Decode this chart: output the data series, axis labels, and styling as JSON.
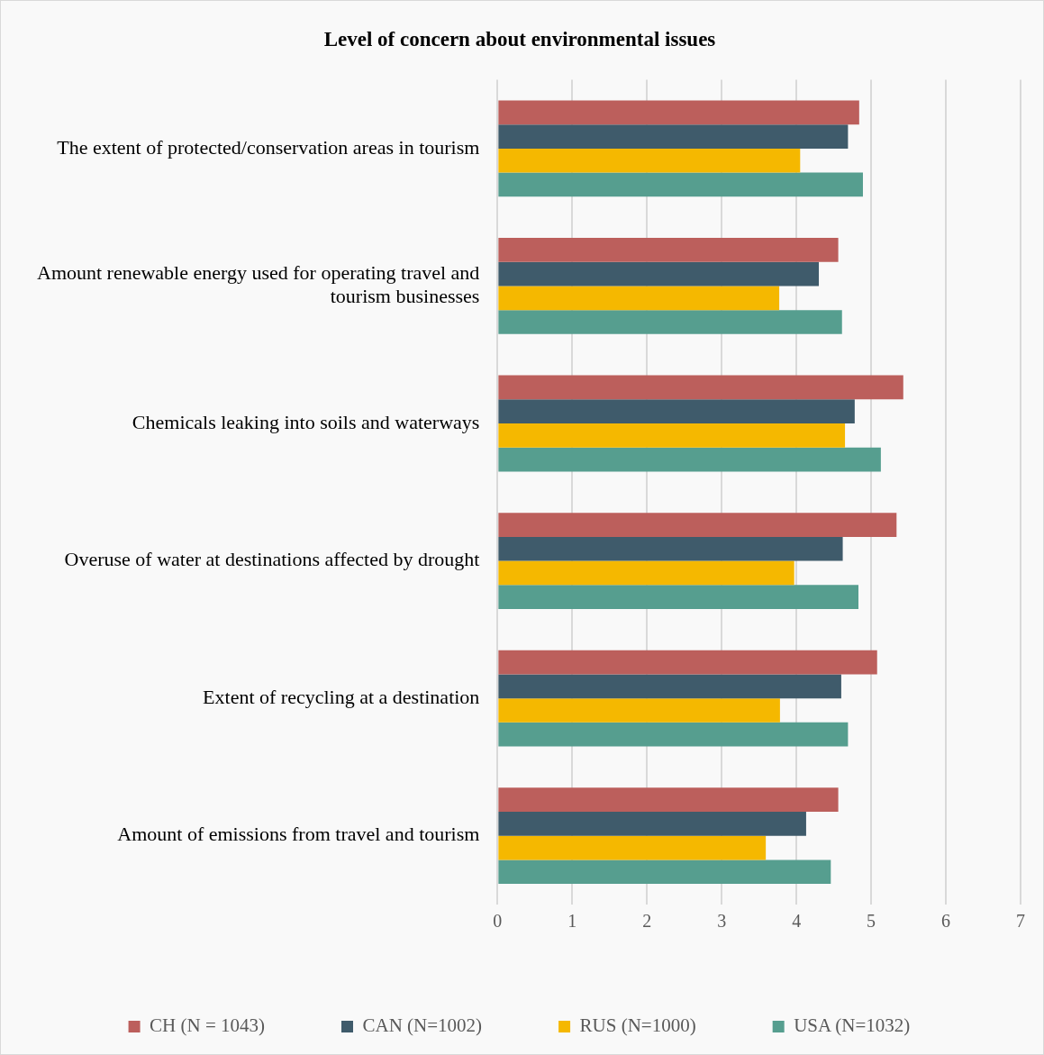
{
  "chart_data": {
    "type": "bar",
    "orientation": "horizontal",
    "title": "Level of concern about environmental issues",
    "categories": [
      "The extent of protected/conservation areas in tourism",
      "Amount renewable energy used for operating travel and tourism businesses",
      "Chemicals leaking into soils and waterways",
      "Overuse of water at destinations affected by drought",
      "Extent of recycling at a destination",
      "Amount of emissions from travel and tourism"
    ],
    "series": [
      {
        "name": "CH (N = 1043)",
        "color": "#bc5f5c",
        "values": [
          4.84,
          4.56,
          5.43,
          5.34,
          5.08,
          4.56
        ]
      },
      {
        "name": "CAN (N=1002)",
        "color": "#3f5b6b",
        "values": [
          4.69,
          4.3,
          4.78,
          4.62,
          4.6,
          4.13
        ]
      },
      {
        "name": "RUS (N=1000)",
        "color": "#f5b800",
        "values": [
          4.05,
          3.77,
          4.65,
          3.97,
          3.78,
          3.59
        ]
      },
      {
        "name": "USA (N=1032)",
        "color": "#569e8f",
        "values": [
          4.89,
          4.61,
          5.13,
          4.83,
          4.69,
          4.46
        ]
      }
    ],
    "xlim": [
      0,
      7
    ],
    "xticks": [
      0,
      1,
      2,
      3,
      4,
      5,
      6,
      7
    ],
    "grid": "x",
    "legend": "bottom"
  }
}
